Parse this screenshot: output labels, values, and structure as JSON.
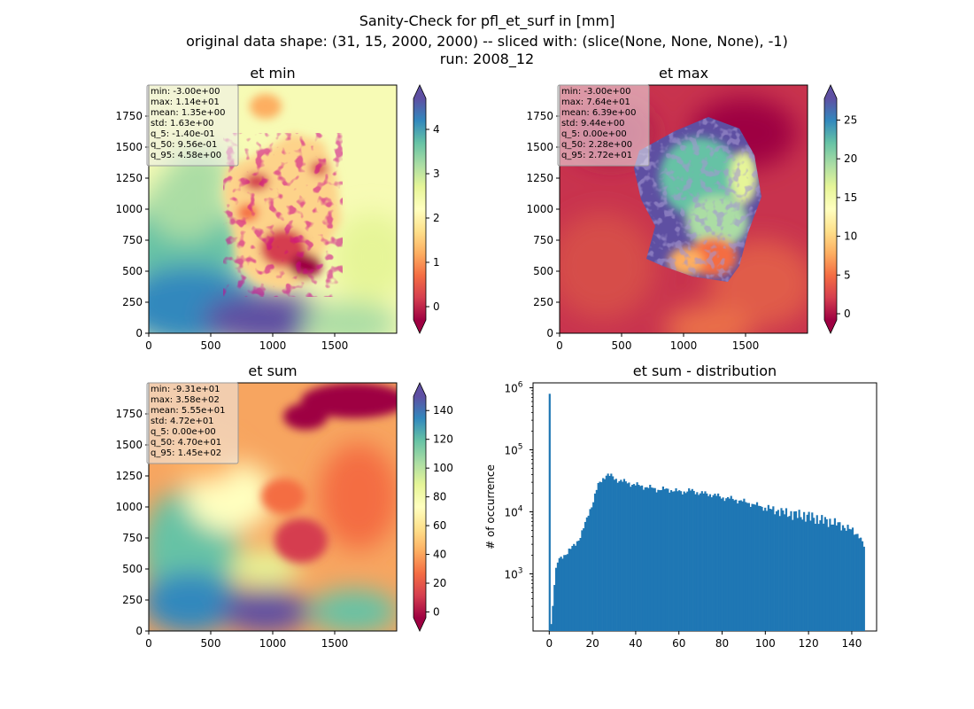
{
  "figure": {
    "title_lines": [
      "Sanity-Check for pfl_et_surf in [mm]",
      "original data shape: (31, 15, 2000, 2000) -- sliced with: (slice(None, None, None), -1)",
      "run: 2008_12"
    ]
  },
  "chart_data": [
    {
      "type": "heatmap",
      "title": "et min",
      "xlim": [
        0,
        2000
      ],
      "ylim": [
        0,
        2000
      ],
      "xticks": [
        "0",
        "500",
        "1000",
        "1500"
      ],
      "yticks": [
        "0",
        "250",
        "500",
        "750",
        "1000",
        "1250",
        "1500",
        "1750"
      ],
      "colormap": "Spectral",
      "colorbar": {
        "range": [
          -0.3,
          4.7
        ],
        "ticks": [
          "0",
          "1",
          "2",
          "3",
          "4"
        ],
        "extend": "both"
      },
      "stats": [
        "min: -3.00e+00",
        "max: 1.14e+01",
        "mean: 1.35e+00",
        "std: 1.63e+00",
        "q_5: -1.40e-01",
        "q_50: 9.56e-01",
        "q_95: 4.58e+00"
      ]
    },
    {
      "type": "heatmap",
      "title": "et max",
      "xlim": [
        0,
        2000
      ],
      "ylim": [
        0,
        2000
      ],
      "xticks": [
        "0",
        "500",
        "1000",
        "1500"
      ],
      "yticks": [
        "0",
        "250",
        "500",
        "750",
        "1000",
        "1250",
        "1500",
        "1750"
      ],
      "colormap": "Spectral",
      "colorbar": {
        "range": [
          -0.8,
          27.8
        ],
        "ticks": [
          "0",
          "5",
          "10",
          "15",
          "20",
          "25"
        ],
        "extend": "both"
      },
      "stats": [
        "min: -3.00e+00",
        "max: 7.64e+01",
        "mean: 6.39e+00",
        "std: 9.44e+00",
        "q_5: 0.00e+00",
        "q_50: 2.28e+00",
        "q_95: 2.72e+01"
      ]
    },
    {
      "type": "heatmap",
      "title": "et sum",
      "xlim": [
        0,
        2000
      ],
      "ylim": [
        0,
        2000
      ],
      "xticks": [
        "0",
        "500",
        "1000",
        "1500"
      ],
      "yticks": [
        "0",
        "250",
        "500",
        "750",
        "1000",
        "1250",
        "1500",
        "1750"
      ],
      "colormap": "Spectral",
      "colorbar": {
        "range": [
          -4,
          150
        ],
        "ticks": [
          "0",
          "20",
          "40",
          "60",
          "80",
          "100",
          "120",
          "140"
        ],
        "extend": "both"
      },
      "stats": [
        "min: -9.31e+01",
        "max: 3.58e+02",
        "mean: 5.55e+01",
        "std: 4.72e+01",
        "q_5: 0.00e+00",
        "q_50: 4.70e+01",
        "q_95: 1.45e+02"
      ]
    },
    {
      "type": "bar",
      "title": "et sum - distribution",
      "xlabel": "",
      "ylabel": "# of occurrence",
      "xlim": [
        -7.5,
        151.5
      ],
      "ylim": [
        120,
        1200000
      ],
      "yscale": "log",
      "xticks": [
        0,
        20,
        40,
        60,
        80,
        100,
        120,
        140
      ],
      "yticks": [
        1000,
        10000,
        100000,
        1000000
      ],
      "color": "#1f77b4",
      "bins": {
        "x": [
          0,
          0.5,
          1,
          1.5,
          2,
          2.5,
          3,
          4,
          5,
          6,
          7,
          8,
          10,
          12,
          14,
          16,
          18,
          20,
          22,
          24,
          26,
          28,
          30,
          35,
          40,
          45,
          50,
          55,
          60,
          65,
          70,
          75,
          80,
          85,
          90,
          95,
          100,
          105,
          110,
          115,
          120,
          125,
          130,
          135,
          140,
          143,
          145
        ],
        "y": [
          800000,
          160,
          220,
          450,
          700,
          1000,
          1300,
          1700,
          1800,
          2000,
          2100,
          2200,
          2600,
          3200,
          4000,
          6000,
          10000,
          15000,
          26000,
          33000,
          40000,
          38000,
          34000,
          30000,
          27000,
          25000,
          23000,
          23000,
          21000,
          22000,
          20000,
          19000,
          17000,
          16000,
          14500,
          13000,
          11500,
          10500,
          9500,
          9000,
          8500,
          7500,
          7000,
          6000,
          5000,
          4200,
          2800
        ]
      }
    }
  ]
}
